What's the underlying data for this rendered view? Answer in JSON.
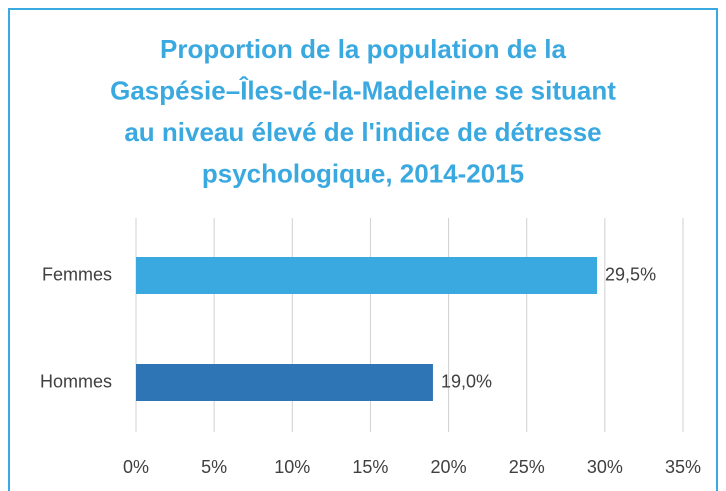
{
  "chart_data": {
    "type": "bar",
    "orientation": "horizontal",
    "title": [
      "Proportion de la population de la",
      "Gaspésie–Îles-de-la-Madeleine se situant",
      "au niveau élevé de l'indice de détresse",
      "psychologique, 2014-2015"
    ],
    "categories": [
      "Femmes",
      "Hommes"
    ],
    "values": [
      29.5,
      19.0
    ],
    "value_labels": [
      "29,5%",
      "19,0%"
    ],
    "colors": [
      "#3aa9e0",
      "#2e75b6"
    ],
    "xlim": [
      0,
      35
    ],
    "xticks": [
      {
        "value": 0,
        "label": "0%"
      },
      {
        "value": 5,
        "label": "5%"
      },
      {
        "value": 10,
        "label": "10%"
      },
      {
        "value": 15,
        "label": "15%"
      },
      {
        "value": 20,
        "label": "20%"
      },
      {
        "value": 25,
        "label": "25%"
      },
      {
        "value": 30,
        "label": "30%"
      },
      {
        "value": 35,
        "label": "35%"
      }
    ],
    "grid": true
  }
}
